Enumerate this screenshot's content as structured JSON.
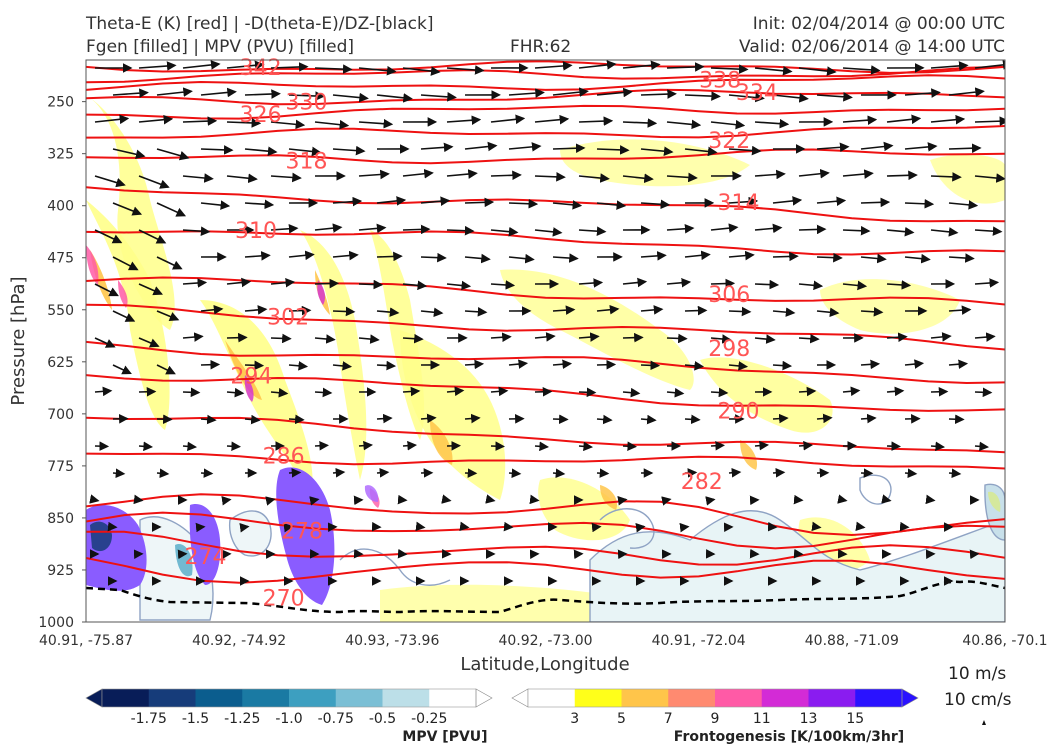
{
  "header": {
    "title_left_1": "Theta-E (K) [red] | -D(theta-E)/DZ-[black]",
    "title_left_2": "Fgen [filled] | MPV (PVU) [filled]",
    "title_center": "FHR:62",
    "title_right_1": "Init: 02/04/2014 @ 00:00 UTC",
    "title_right_2": "Valid: 02/06/2014 @ 14:00 UTC"
  },
  "chart_data": {
    "type": "cross-section",
    "xlabel": "Latitude,Longitude",
    "ylabel": "Pressure [hPa]",
    "ylim": [
      1000,
      190
    ],
    "x_tick_labels": [
      "40.91, -75.87",
      "40.92, -74.92",
      "40.93, -73.96",
      "40.92, -73.00",
      "40.91, -72.04",
      "40.88, -71.09",
      "40.86, -70.1"
    ],
    "y_ticks": [
      250,
      325,
      400,
      475,
      550,
      625,
      700,
      775,
      850,
      925,
      1000
    ],
    "theta_e_contours": [
      {
        "value": 342,
        "pressure_left": 200,
        "pressure_right": 200
      },
      {
        "value": 338,
        "pressure_left": 214,
        "pressure_right": 208
      },
      {
        "value": 334,
        "pressure_left": 232,
        "pressure_right": 218
      },
      {
        "value": 330,
        "pressure_left": 250,
        "pressure_right": 236
      },
      {
        "value": 326,
        "pressure_left": 268,
        "pressure_right": 258
      },
      {
        "value": 322,
        "pressure_left": 300,
        "pressure_right": 290
      },
      {
        "value": 318,
        "pressure_left": 335,
        "pressure_right": 325
      },
      {
        "value": 314,
        "pressure_left": 375,
        "pressure_right": 420
      },
      {
        "value": 310,
        "pressure_left": 430,
        "pressure_right": 470
      },
      {
        "value": 306,
        "pressure_left": 505,
        "pressure_right": 545
      },
      {
        "value": 302,
        "pressure_left": 550,
        "pressure_right": 600
      },
      {
        "value": 298,
        "pressure_left": 600,
        "pressure_right": 650
      },
      {
        "value": 294,
        "pressure_left": 640,
        "pressure_right": 700
      },
      {
        "value": 290,
        "pressure_left": 705,
        "pressure_right": 760
      },
      {
        "value": 286,
        "pressure_left": 760,
        "pressure_right": 775
      },
      {
        "value": 282,
        "pressure_left": 820,
        "pressure_right": 860
      },
      {
        "value": 278,
        "pressure_left": 855,
        "pressure_right": 880
      },
      {
        "value": 274,
        "pressure_left": 890,
        "pressure_right": 910
      },
      {
        "value": 270,
        "pressure_left": 925,
        "pressure_right": 925
      }
    ],
    "contour_labels": [
      {
        "value": "342",
        "x": 0.19,
        "p": 200
      },
      {
        "value": "326",
        "x": 0.19,
        "p": 268
      },
      {
        "value": "330",
        "x": 0.24,
        "p": 250
      },
      {
        "value": "318",
        "x": 0.24,
        "p": 335
      },
      {
        "value": "310",
        "x": 0.185,
        "p": 435
      },
      {
        "value": "302",
        "x": 0.22,
        "p": 560
      },
      {
        "value": "294",
        "x": 0.18,
        "p": 645
      },
      {
        "value": "286",
        "x": 0.215,
        "p": 760
      },
      {
        "value": "278",
        "x": 0.235,
        "p": 868
      },
      {
        "value": "274",
        "x": 0.13,
        "p": 905
      },
      {
        "value": "270",
        "x": 0.215,
        "p": 965
      },
      {
        "value": "338",
        "x": 0.69,
        "p": 218
      },
      {
        "value": "334",
        "x": 0.73,
        "p": 236
      },
      {
        "value": "322",
        "x": 0.7,
        "p": 305
      },
      {
        "value": "314",
        "x": 0.71,
        "p": 395
      },
      {
        "value": "306",
        "x": 0.7,
        "p": 527
      },
      {
        "value": "298",
        "x": 0.7,
        "p": 605
      },
      {
        "value": "290",
        "x": 0.71,
        "p": 695
      },
      {
        "value": "282",
        "x": 0.67,
        "p": 797
      }
    ],
    "fgen_colorbar": {
      "label": "Frontogenesis [K/100km/3hr]",
      "ticks": [
        "3",
        "5",
        "7",
        "9",
        "11",
        "13",
        "15"
      ],
      "colors": [
        "#ffffff",
        "#ffff1a",
        "#ffc54a",
        "#ff8a70",
        "#ff5aa6",
        "#d32bd6",
        "#8a1cf0",
        "#2a12ff"
      ]
    },
    "mpv_colorbar": {
      "label": "MPV [PVU]",
      "ticks": [
        "-1.75",
        "-1.5",
        "-1.25",
        "-1.0",
        "-0.75",
        "-0.5",
        "-0.25"
      ],
      "colors": [
        "#081d58",
        "#163c7a",
        "#0b5d8e",
        "#1a7aa3",
        "#3d9fc0",
        "#7bbfd5",
        "#bcdfe8",
        "#ffffff"
      ]
    },
    "wind_reference": {
      "h_label": "10 m/s",
      "v_label": "10 cm/s"
    }
  }
}
